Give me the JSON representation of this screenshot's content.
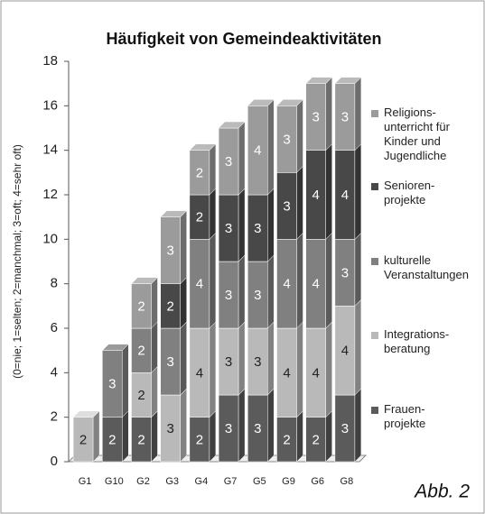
{
  "chart_data": {
    "type": "stacked-bar-3d",
    "title": "Häufigkeit von Gemeindeaktivitäten",
    "y_label": "(0=nie; 1=selten; 2=manchmal; 3=oft; 4=sehr oft)",
    "annotation": "Abb. 2",
    "categories": [
      "G1",
      "G10",
      "G2",
      "G3",
      "G4",
      "G7",
      "G5",
      "G9",
      "G6",
      "G8"
    ],
    "series": [
      {
        "name": "Frauen-\nprojekte",
        "color": "#5b5b5b",
        "values": [
          0,
          2,
          2,
          0,
          2,
          3,
          3,
          2,
          2,
          3
        ]
      },
      {
        "name": "Integrations-\nberatung",
        "color": "#b9b9b9",
        "values": [
          2,
          0,
          2,
          3,
          4,
          3,
          3,
          4,
          4,
          4
        ]
      },
      {
        "name": "kulturelle\nVeranstaltungen",
        "color": "#808080",
        "values": [
          0,
          3,
          2,
          3,
          4,
          3,
          3,
          4,
          4,
          3
        ]
      },
      {
        "name": "Senioren-\nprojekte",
        "color": "#484848",
        "values": [
          0,
          0,
          0,
          2,
          2,
          3,
          3,
          3,
          4,
          4
        ]
      },
      {
        "name": "Religions-\nunterricht für\nKinder und\nJugendliche",
        "color": "#9b9b9b",
        "values": [
          0,
          0,
          2,
          3,
          2,
          3,
          4,
          3,
          3,
          3
        ]
      }
    ],
    "ylim": [
      0,
      18
    ],
    "yticks": [
      0,
      2,
      4,
      6,
      8,
      10,
      12,
      14,
      16,
      18
    ],
    "legend": "right"
  }
}
